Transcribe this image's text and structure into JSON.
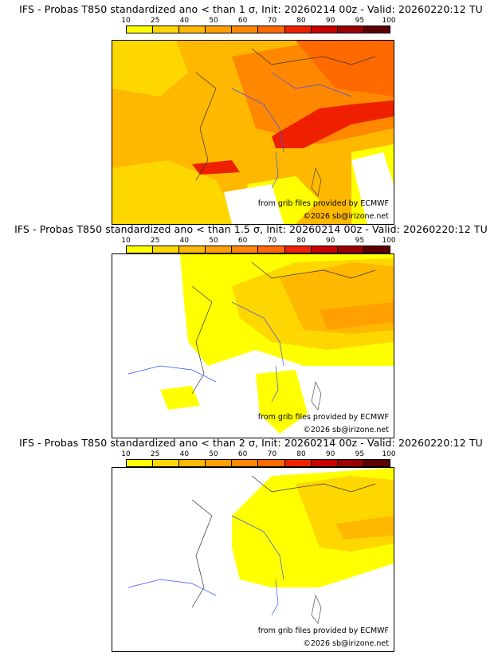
{
  "scale": {
    "ticks": [
      "10",
      "25",
      "40",
      "50",
      "60",
      "70",
      "80",
      "90",
      "95",
      "100"
    ],
    "colors": [
      "#ffff00",
      "#ffd700",
      "#ffb800",
      "#ffa000",
      "#ff8800",
      "#ff6a00",
      "#ee2000",
      "#c80000",
      "#9a0000",
      "#5a0000"
    ]
  },
  "panels": [
    {
      "title": "IFS - Probas T850  standardized ano < than 1 σ, Init: 20260214 00z - Valid: 20260220:12 TU",
      "credit_source": "from grib files provided by ECMWF",
      "credit_copyright": "©2026 sb@irizone.net",
      "level": "high"
    },
    {
      "title": "IFS - Probas T850  standardized ano < than 1.5 σ, Init: 20260214 00z - Valid: 20260220:12 TU",
      "credit_source": "from grib files provided by ECMWF",
      "credit_copyright": "©2026 sb@irizone.net",
      "level": "medium"
    },
    {
      "title": "IFS - Probas T850  standardized ano < than 2 σ, Init: 20260214 00z - Valid: 20260220:12 TU",
      "credit_source": "from grib files provided by ECMWF",
      "credit_copyright": "©2026 sb@irizone.net",
      "level": "low"
    }
  ]
}
